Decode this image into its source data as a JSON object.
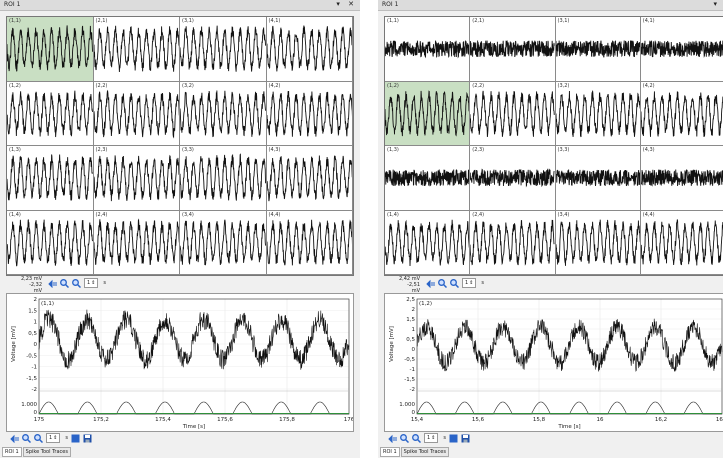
{
  "panels": [
    {
      "id": "left",
      "title": "ROI 1",
      "window_buttons": [
        "▾",
        "✕"
      ],
      "cells": [
        {
          "label": "(1,1)",
          "type": "osc",
          "selected": true
        },
        {
          "label": "(2,1)",
          "type": "osc",
          "selected": false
        },
        {
          "label": "(3,1)",
          "type": "osc",
          "selected": false
        },
        {
          "label": "(4,1)",
          "type": "osc",
          "selected": false
        },
        {
          "label": "(1,2)",
          "type": "osc",
          "selected": false
        },
        {
          "label": "(2,2)",
          "type": "osc",
          "selected": false
        },
        {
          "label": "(3,2)",
          "type": "osc",
          "selected": false
        },
        {
          "label": "(4,2)",
          "type": "osc",
          "selected": false
        },
        {
          "label": "(1,3)",
          "type": "osc",
          "selected": false
        },
        {
          "label": "(2,3)",
          "type": "osc",
          "selected": false
        },
        {
          "label": "(3,3)",
          "type": "osc",
          "selected": false
        },
        {
          "label": "(4,3)",
          "type": "osc",
          "selected": false
        },
        {
          "label": "(1,4)",
          "type": "osc",
          "selected": false
        },
        {
          "label": "(2,4)",
          "type": "osc",
          "selected": false
        },
        {
          "label": "(3,4)",
          "type": "osc",
          "selected": false
        },
        {
          "label": "(4,4)",
          "type": "osc",
          "selected": false
        }
      ],
      "scale_top": "2,23 mV",
      "scale_bottom": "-2,32 mV",
      "window_value": "1",
      "window_unit": "s",
      "detail": {
        "channel": "(1,1)",
        "ylabel": "Voltage [mV]",
        "xlabel": "Time [s]",
        "yticks": [
          "2",
          "1,5",
          "1",
          "0,5",
          "0",
          "-0,5",
          "-1",
          "-1,5",
          "-2"
        ],
        "ymin": -2,
        "ymax": 2,
        "xticks": [
          "175",
          "175,2",
          "175,4",
          "175,6",
          "175,8",
          "176"
        ],
        "xmin": 175,
        "xmax": 176,
        "cycles": 8,
        "trigger_ticks": [
          "1.000",
          "0"
        ]
      },
      "bottom_value": "1",
      "bottom_unit": "s",
      "tabs": [
        "ROI 1",
        "Spike Tool Traces"
      ]
    },
    {
      "id": "right",
      "title": "ROI 1",
      "window_buttons": [
        "▾"
      ],
      "cells": [
        {
          "label": "(1,1)",
          "type": "noise",
          "selected": false
        },
        {
          "label": "(2,1)",
          "type": "noise",
          "selected": false
        },
        {
          "label": "(3,1)",
          "type": "noise",
          "selected": false
        },
        {
          "label": "(4,1)",
          "type": "noise",
          "selected": false
        },
        {
          "label": "(1,2)",
          "type": "osc",
          "selected": true
        },
        {
          "label": "(2,2)",
          "type": "osc",
          "selected": false
        },
        {
          "label": "(3,2)",
          "type": "osc",
          "selected": false
        },
        {
          "label": "(4,2)",
          "type": "osc",
          "selected": false
        },
        {
          "label": "(1,3)",
          "type": "noise",
          "selected": false
        },
        {
          "label": "(2,3)",
          "type": "noise",
          "selected": false
        },
        {
          "label": "(3,3)",
          "type": "noise",
          "selected": false
        },
        {
          "label": "(4,3)",
          "type": "noise",
          "selected": false
        },
        {
          "label": "(1,4)",
          "type": "osc",
          "selected": false
        },
        {
          "label": "(2,4)",
          "type": "osc",
          "selected": false
        },
        {
          "label": "(3,4)",
          "type": "osc",
          "selected": false
        },
        {
          "label": "(4,4)",
          "type": "osc",
          "selected": false
        }
      ],
      "scale_top": "2,42 mV",
      "scale_bottom": "-2,51 mV",
      "window_value": "1",
      "window_unit": "s",
      "detail": {
        "channel": "(1,2)",
        "ylabel": "Voltage [mV]",
        "xlabel": "Time [s]",
        "yticks": [
          "2,5",
          "2",
          "1,5",
          "1",
          "0,5",
          "0",
          "-0,5",
          "-1",
          "-1,5",
          "-2"
        ],
        "ymin": -2,
        "ymax": 2.5,
        "xticks": [
          "15,4",
          "15,6",
          "15,8",
          "16",
          "16,2",
          "16,4"
        ],
        "xmin": 15.4,
        "xmax": 16.4,
        "cycles": 8,
        "trigger_ticks": [
          "1.000",
          "0"
        ]
      },
      "bottom_value": "1",
      "bottom_unit": "s",
      "tabs": [
        "ROI 1",
        "Spike Tool Traces"
      ]
    }
  ]
}
